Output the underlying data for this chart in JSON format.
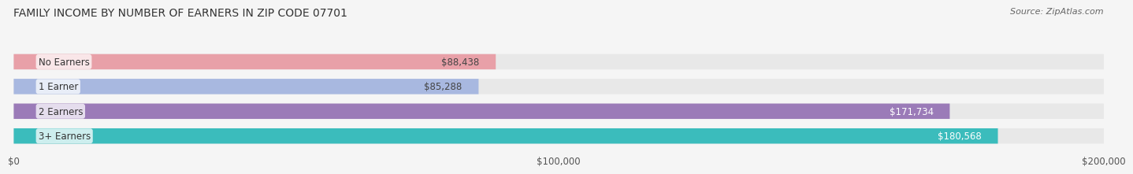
{
  "title": "FAMILY INCOME BY NUMBER OF EARNERS IN ZIP CODE 07701",
  "source": "Source: ZipAtlas.com",
  "categories": [
    "No Earners",
    "1 Earner",
    "2 Earners",
    "3+ Earners"
  ],
  "values": [
    88438,
    85288,
    171734,
    180568
  ],
  "bar_colors": [
    "#E8A0A8",
    "#A8B8E0",
    "#9B7BB8",
    "#3BBCBC"
  ],
  "bar_bg_color": "#E8E8E8",
  "label_colors": [
    "#444444",
    "#444444",
    "#FFFFFF",
    "#FFFFFF"
  ],
  "value_labels": [
    "$88,438",
    "$85,288",
    "$171,734",
    "$180,568"
  ],
  "xlim": [
    0,
    200000
  ],
  "xticks": [
    0,
    100000,
    200000
  ],
  "xtick_labels": [
    "$0",
    "$100,000",
    "$200,000"
  ],
  "bg_color": "#F5F5F5",
  "title_fontsize": 10,
  "source_fontsize": 8,
  "label_fontsize": 8.5,
  "value_fontsize": 8.5
}
